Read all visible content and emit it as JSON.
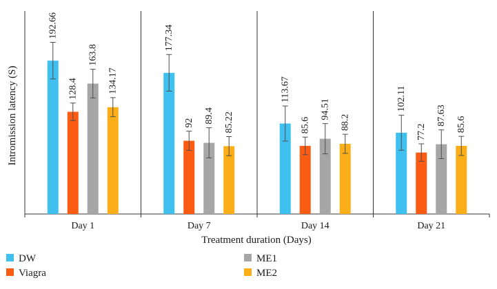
{
  "chart_data": {
    "type": "bar",
    "title": "",
    "xlabel": "Treatment duration (Days)",
    "ylabel": "Intromission latency (S)",
    "ylim": [
      0,
      255
    ],
    "grid": false,
    "legend_position": "bottom",
    "categories": [
      "Day 1",
      "Day 7",
      "Day 14",
      "Day 21"
    ],
    "series": [
      {
        "name": "DW",
        "color": "#3fc0ef",
        "values": [
          192.66,
          177.34,
          113.67,
          102.11
        ],
        "labels": [
          "192.66",
          "177.34",
          "113.67",
          "102.11"
        ],
        "errors": [
          23,
          23,
          22,
          22
        ]
      },
      {
        "name": "Viagra",
        "color": "#fa5c14",
        "values": [
          128.4,
          92,
          85.6,
          77.2
        ],
        "labels": [
          "128.4",
          "92",
          "85.6",
          "77.2"
        ],
        "errors": [
          11,
          12,
          11,
          11
        ]
      },
      {
        "name": "ME1",
        "color": "#a6a6a6",
        "values": [
          163.8,
          89.4,
          94.51,
          87.63
        ],
        "labels": [
          "163.8",
          "89.4",
          "94.51",
          "87.63"
        ],
        "errors": [
          18,
          19,
          19,
          18
        ]
      },
      {
        "name": "ME2",
        "color": "#fbae17",
        "values": [
          134.17,
          85.22,
          88.2,
          85.6
        ],
        "labels": [
          "134.17",
          "85.22",
          "88.2",
          "85.6"
        ],
        "errors": [
          12,
          12,
          12,
          12
        ]
      }
    ]
  }
}
